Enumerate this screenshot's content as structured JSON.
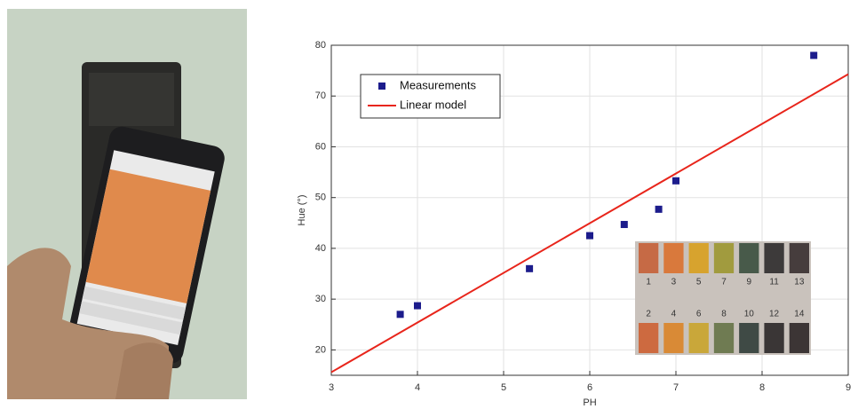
{
  "chart_data": {
    "type": "scatter",
    "xlabel": "PH",
    "ylabel": "Hue (°)",
    "xlim": [
      3,
      9
    ],
    "xticks": [
      3,
      4,
      5,
      6,
      7,
      8,
      9
    ],
    "ylim": [
      15,
      80
    ],
    "yticks": [
      20,
      30,
      40,
      50,
      60,
      70,
      80
    ],
    "grid": true,
    "legend": "upper left",
    "series": [
      {
        "name": "Measurements",
        "color": "#1c1c8c",
        "x": [
          3.8,
          4,
          5.3,
          6,
          6.4,
          6.8,
          7,
          8.6
        ],
        "values": [
          27,
          28.7,
          36,
          42.5,
          44.7,
          47.7,
          53.3,
          78
        ]
      },
      {
        "name": "Linear model",
        "color": "#e8251b",
        "type": "line",
        "x": [
          3,
          9
        ],
        "values": [
          15.6,
          74.3
        ]
      }
    ]
  },
  "inset": {
    "top_labels": [
      1,
      3,
      5,
      7,
      9,
      11,
      13
    ],
    "bottom_labels": [
      2,
      4,
      6,
      8,
      10,
      12,
      14
    ]
  }
}
